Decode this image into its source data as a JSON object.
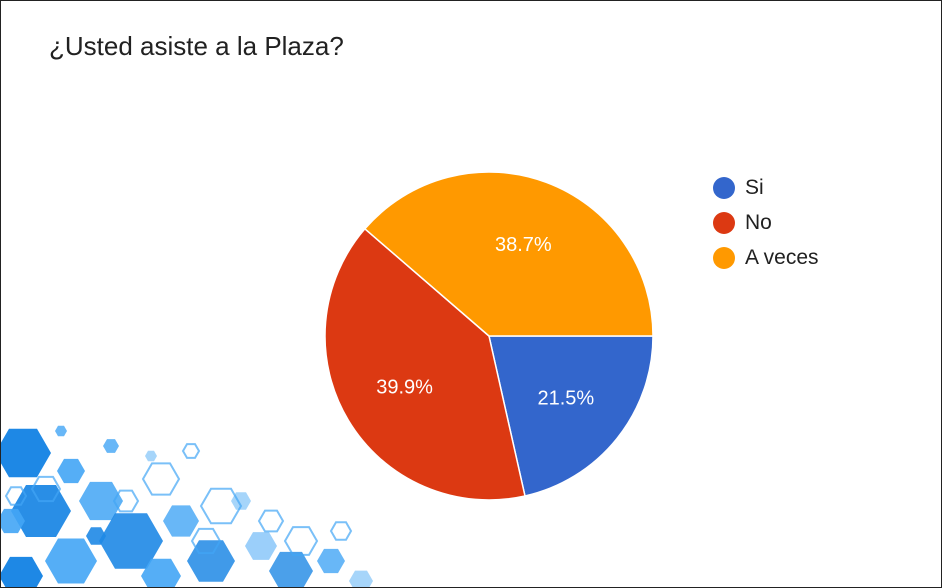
{
  "chart_data": {
    "type": "pie",
    "title": "¿Usted asiste a la Plaza?",
    "labels": [
      "Si",
      "No",
      "A veces"
    ],
    "values": [
      21.5,
      39.9,
      38.7
    ],
    "value_labels": [
      "21.5%",
      "39.9%",
      "38.7%"
    ],
    "colors": [
      "#3366cc",
      "#dc3912",
      "#ff9900"
    ],
    "legend_position": "right"
  },
  "decoration": {
    "pattern": "hexagon-pattern",
    "colors": [
      "#1e88e5",
      "#42a5f5",
      "#90caf9"
    ]
  }
}
